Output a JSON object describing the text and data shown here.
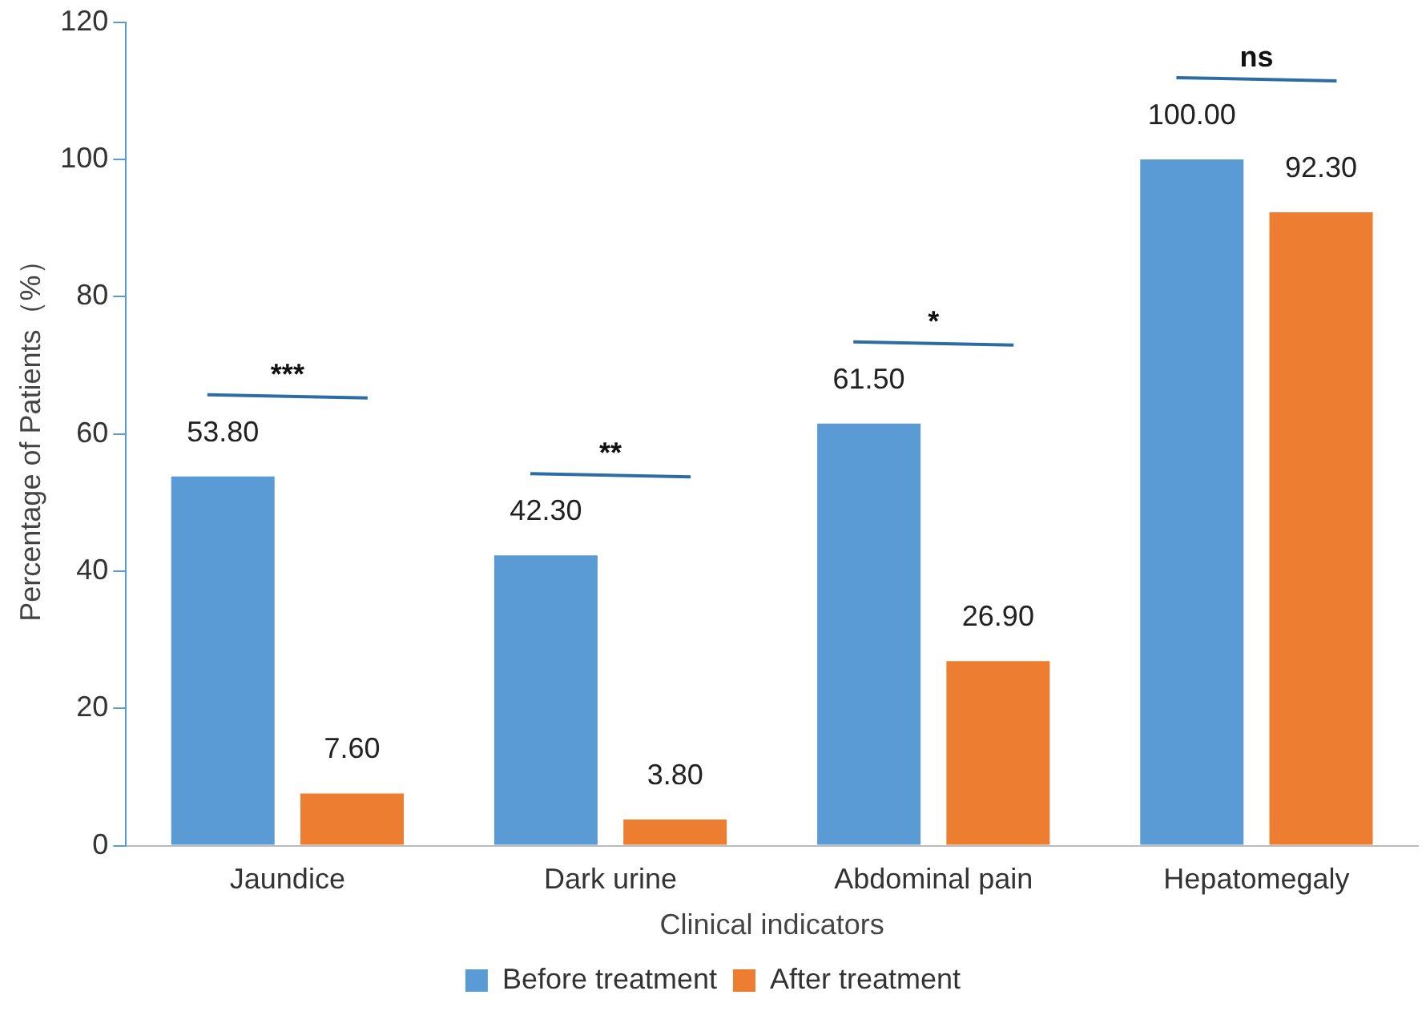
{
  "chart_data": {
    "type": "bar",
    "xlabel": "Clinical indicators",
    "ylabel": "Percentage of Patients（%）",
    "categories": [
      "Jaundice",
      "Dark urine",
      "Abdominal pain",
      "Hepatomegaly"
    ],
    "series": [
      {
        "name": "Before treatment",
        "color": "#5b9bd5",
        "values": [
          53.8,
          42.3,
          61.5,
          100
        ],
        "value_labels": [
          "53.80",
          "42.30",
          "61.50",
          "100.00"
        ]
      },
      {
        "name": "After treatment",
        "color": "#ed7d31",
        "values": [
          7.6,
          3.8,
          26.9,
          92.3
        ],
        "value_labels": [
          "7.60",
          "3.80",
          "26.90",
          "92.30"
        ]
      }
    ],
    "ylim": [
      0,
      120
    ],
    "yticks": [
      0,
      20,
      40,
      60,
      80,
      100,
      120
    ],
    "grid": false,
    "legend": "bottom",
    "annotations": [
      "***",
      "**",
      "*",
      "ns"
    ]
  }
}
